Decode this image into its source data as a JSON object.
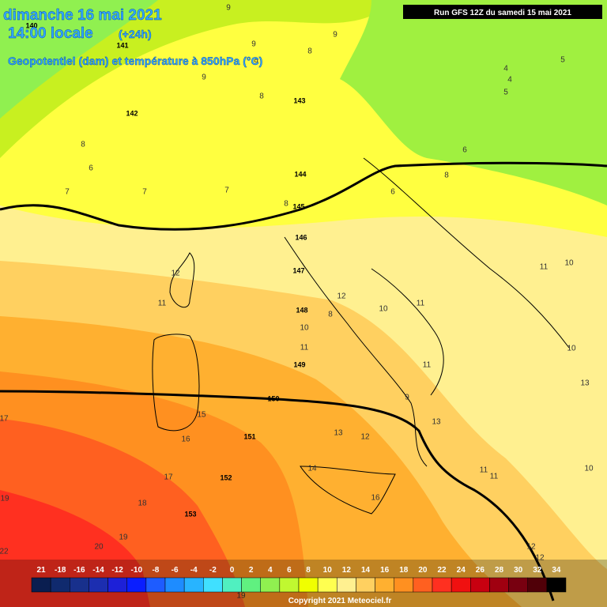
{
  "header": {
    "date": "dimanche 16 mai 2021",
    "time": "14:00 locale",
    "offset": "(+24h)",
    "subtitle": "Geopotentiel (dam) et température à 850hPa (°C)",
    "run": "Run GFS 12Z du samedi 15 mai 2021"
  },
  "geopotential_labels": [
    "140",
    "141",
    "142",
    "143",
    "144",
    "145",
    "146",
    "147",
    "148",
    "149",
    "150",
    "151",
    "152",
    "153"
  ],
  "temperature_labels": [
    "8",
    "6",
    "7",
    "7",
    "7",
    "8",
    "12",
    "11",
    "12",
    "10",
    "11",
    "8",
    "10",
    "11",
    "11",
    "9",
    "13",
    "12",
    "13",
    "14",
    "16",
    "15",
    "16",
    "17",
    "18",
    "19",
    "19",
    "20",
    "22",
    "17",
    "11",
    "10",
    "10",
    "13",
    "11",
    "11",
    "10",
    "12",
    "12",
    "8",
    "4",
    "4",
    "5",
    "5",
    "6",
    "6",
    "9",
    "9",
    "8",
    "9",
    "8",
    "9",
    "9",
    "19"
  ],
  "legend": {
    "labels": [
      "21",
      "-18",
      "-16",
      "-14",
      "-12",
      "-10",
      "-8",
      "-6",
      "-4",
      "-2",
      "0",
      "2",
      "4",
      "6",
      "8",
      "10",
      "12",
      "14",
      "16",
      "18",
      "20",
      "22",
      "24",
      "26",
      "28",
      "30",
      "32",
      "34"
    ],
    "colors": [
      "#0a1e50",
      "#102a6e",
      "#18308c",
      "#1c2eb0",
      "#1d20d8",
      "#0a1eff",
      "#1e5cff",
      "#1e8cff",
      "#28b4ff",
      "#40e0ff",
      "#50f0c0",
      "#60f080",
      "#90f050",
      "#c0f830",
      "#f0ff00",
      "#ffff50",
      "#fff090",
      "#ffd060",
      "#ffb030",
      "#ff9020",
      "#ff6020",
      "#ff3020",
      "#f01010",
      "#c80010",
      "#a00010",
      "#780010",
      "#500008",
      "#000000"
    ]
  },
  "copyright": "Copyright 2021 Meteociel.fr"
}
